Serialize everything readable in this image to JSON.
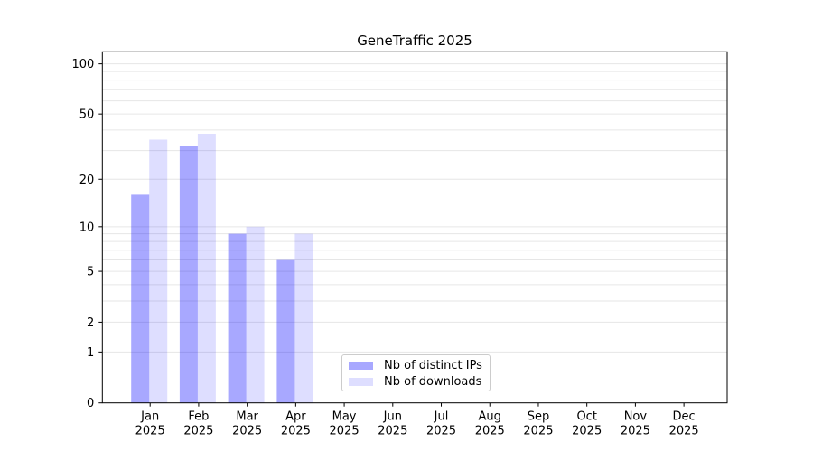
{
  "title": "GeneTraffic 2025",
  "legend": {
    "items": [
      {
        "label": "Nb of distinct IPs",
        "color": "rgba(0,0,255,0.34)"
      },
      {
        "label": "Nb of downloads",
        "color": "rgba(0,0,255,0.13)"
      }
    ]
  },
  "chart_data": {
    "type": "bar",
    "title": "GeneTraffic 2025",
    "categories": [
      "Jan 2025",
      "Feb 2025",
      "Mar 2025",
      "Apr 2025",
      "May 2025",
      "Jun 2025",
      "Jul 2025",
      "Aug 2025",
      "Sep 2025",
      "Oct 2025",
      "Nov 2025",
      "Dec 2025"
    ],
    "month_labels": [
      "Jan",
      "Feb",
      "Mar",
      "Apr",
      "May",
      "Jun",
      "Jul",
      "Aug",
      "Sep",
      "Oct",
      "Nov",
      "Dec"
    ],
    "year_label": "2025",
    "series": [
      {
        "name": "Nb of distinct IPs",
        "key": "distinct-ips",
        "color": "rgba(0,0,255,0.34)",
        "values": [
          16,
          32,
          9,
          6,
          0,
          0,
          0,
          0,
          0,
          0,
          0,
          0
        ]
      },
      {
        "name": "Nb of downloads",
        "key": "downloads",
        "color": "rgba(0,0,255,0.13)",
        "values": [
          35,
          38,
          10,
          9,
          0,
          0,
          0,
          0,
          0,
          0,
          0,
          0
        ]
      }
    ],
    "xlabel": "",
    "ylabel": "",
    "yscale": "log1p",
    "ylim": [
      0,
      118
    ],
    "yticks": [
      0,
      1,
      2,
      5,
      10,
      20,
      50,
      100
    ],
    "gridline_values": [
      1,
      2,
      3,
      4,
      5,
      6,
      7,
      8,
      9,
      10,
      20,
      30,
      40,
      50,
      60,
      70,
      80,
      90,
      100
    ],
    "grid": true,
    "legend_position": "lower-center",
    "colors": {
      "grid": "#e6e6e6",
      "axis": "#000000",
      "legend_border": "#cccccc",
      "background": "#ffffff"
    }
  }
}
